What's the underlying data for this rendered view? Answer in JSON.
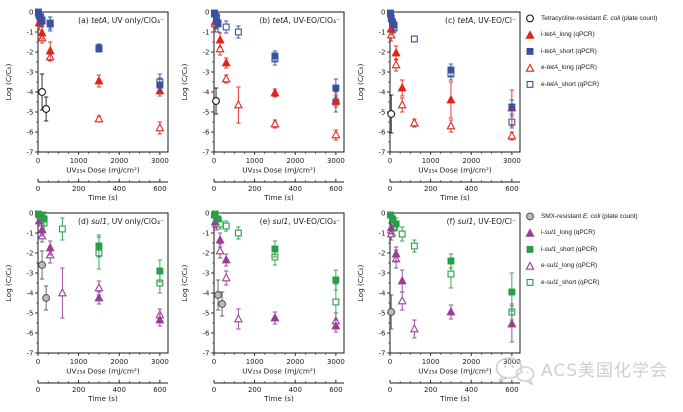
{
  "watermark": {
    "text": "ACS美国化学会",
    "icon": "wechat-bubbles",
    "color": "#cfcfcf"
  },
  "colors": {
    "red": "#e1251b",
    "blue": "#3a50a0",
    "purple": "#993d98",
    "green": "#2b9c4a",
    "black": "#1a1a1a",
    "gray_stroke": "#595959",
    "gray_fill": "#bdbdbd"
  },
  "chart_data": {
    "type": "scatter",
    "x_axis": {
      "label": "UV₂₅₄ Dose (mJ/cm²)",
      "ticks": [
        0,
        1000,
        2000,
        3000
      ],
      "range": [
        0,
        3200
      ],
      "minor_step": 250
    },
    "x2_axis": {
      "label": "Time (s)",
      "ticks": [
        0,
        200,
        400,
        600
      ],
      "range": [
        0,
        640
      ],
      "minor_step": 50
    },
    "y_axis": {
      "label": "Log (C/C₀)",
      "ticks": [
        0,
        -1,
        -2,
        -3,
        -4,
        -5,
        -6,
        -7
      ],
      "range": [
        0,
        -7
      ],
      "minor_step": 0.5
    },
    "grid": false,
    "legend_position": "right",
    "series_defs": {
      "tetA": [
        {
          "key": "plate",
          "label": "Tetracycline-resistant *E. coli* (plate count)",
          "marker": "circle",
          "stroke": "#1a1a1a",
          "fill": "#ffffff"
        },
        {
          "key": "i_long",
          "label": "i-*tetA*_long (qPCR)",
          "marker": "triangle",
          "stroke": "#e1251b",
          "fill": "#e1251b"
        },
        {
          "key": "i_short",
          "label": "i-*tetA*_short (qPCR)",
          "marker": "square",
          "stroke": "#3a50a0",
          "fill": "#3a50a0"
        },
        {
          "key": "e_long",
          "label": "e-*tetA*_long (qPCR)",
          "marker": "triangle",
          "stroke": "#e1251b",
          "fill": "#ffffff"
        },
        {
          "key": "e_short",
          "label": "e-*tetA*_short (qPCR)",
          "marker": "square",
          "stroke": "#3a50a0",
          "fill": "#ffffff"
        }
      ],
      "sul1": [
        {
          "key": "plate",
          "label": "SMX-resistant *E. coli* (plate count)",
          "marker": "circle",
          "stroke": "#595959",
          "fill": "#bdbdbd"
        },
        {
          "key": "i_long",
          "label": "i-*sul1*_long (qPCR)",
          "marker": "triangle",
          "stroke": "#993d98",
          "fill": "#993d98"
        },
        {
          "key": "i_short",
          "label": "i-*sul1*_short (qPCR)",
          "marker": "square",
          "stroke": "#2b9c4a",
          "fill": "#2b9c4a"
        },
        {
          "key": "e_long",
          "label": "e-*sul1*_long (qPCR)",
          "marker": "triangle",
          "stroke": "#993d98",
          "fill": "#ffffff"
        },
        {
          "key": "e_short",
          "label": "e-*sul1*_short (qPCR)",
          "marker": "square",
          "stroke": "#2b9c4a",
          "fill": "#ffffff"
        }
      ]
    },
    "panels": [
      {
        "id": "a",
        "row": "tetA",
        "title": "(a) *tetA*, UV only/ClO₄⁻",
        "series": {
          "plate": [
            [
              100,
              -4.0,
              0.9
            ],
            [
              200,
              -4.85,
              0.6
            ]
          ],
          "i_long": [
            [
              30,
              -0.55,
              0.35
            ],
            [
              100,
              -1.05,
              0.3
            ],
            [
              300,
              -1.95,
              0.45
            ],
            [
              1500,
              -3.45,
              0.3
            ],
            [
              3000,
              -3.95,
              0.25
            ]
          ],
          "i_short": [
            [
              10,
              -0.05,
              0.1
            ],
            [
              30,
              -0.2,
              0.25
            ],
            [
              60,
              -0.3,
              0.25
            ],
            [
              100,
              -0.45,
              0.3
            ],
            [
              300,
              -0.6,
              0.35
            ],
            [
              1500,
              -1.85,
              0.15
            ],
            [
              3000,
              -3.65,
              0.35
            ]
          ],
          "e_long": [
            [
              100,
              -1.3,
              0.25
            ],
            [
              300,
              -2.25,
              0.2
            ],
            [
              1500,
              -5.35,
              0.15
            ],
            [
              3000,
              -5.8,
              0.3
            ]
          ],
          "e_short": [
            [
              10,
              0,
              0.05
            ],
            [
              30,
              -0.15,
              0.15
            ],
            [
              60,
              -0.25,
              0.2
            ],
            [
              100,
              -0.4,
              0.25
            ],
            [
              300,
              -0.55,
              0.3
            ],
            [
              1500,
              -1.8,
              0.2
            ],
            [
              3000,
              -3.5,
              0.4
            ]
          ]
        }
      },
      {
        "id": "b",
        "row": "tetA",
        "title": "(b) *tetA*, UV-EO/ClO₄⁻",
        "series": {
          "plate": [
            [
              50,
              -4.45,
              0.65
            ]
          ],
          "i_long": [
            [
              30,
              -0.5,
              0.3
            ],
            [
              150,
              -1.4,
              0.35
            ],
            [
              300,
              -2.55,
              0.25
            ],
            [
              1500,
              -4.05,
              0.2
            ],
            [
              3000,
              -4.45,
              0.3
            ]
          ],
          "i_short": [
            [
              10,
              -0.1,
              0.15
            ],
            [
              60,
              -0.45,
              0.4
            ],
            [
              100,
              -0.55,
              0.45
            ],
            [
              1500,
              -2.2,
              0.25
            ],
            [
              3000,
              -3.8,
              0.45
            ]
          ],
          "e_long": [
            [
              30,
              -0.6,
              0.4
            ],
            [
              150,
              -1.85,
              0.3
            ],
            [
              300,
              -3.35,
              0.2
            ],
            [
              600,
              -4.65,
              0.9
            ],
            [
              1500,
              -5.6,
              0.2
            ],
            [
              3000,
              -6.15,
              0.25
            ]
          ],
          "e_short": [
            [
              10,
              -0.05,
              0.1
            ],
            [
              60,
              -0.3,
              0.3
            ],
            [
              100,
              -0.6,
              0.4
            ],
            [
              300,
              -0.75,
              0.3
            ],
            [
              600,
              -1.0,
              0.3
            ],
            [
              1500,
              -2.35,
              0.3
            ],
            [
              3000,
              -4.5,
              0.5
            ]
          ]
        }
      },
      {
        "id": "c",
        "row": "tetA",
        "title": "(c) *tetA*, UV-EO/Cl⁻",
        "series": {
          "plate": [
            [
              30,
              -5.1,
              0.95
            ]
          ],
          "i_long": [
            [
              30,
              -0.85,
              0.3
            ],
            [
              150,
              -2.05,
              0.35
            ],
            [
              300,
              -3.8,
              0.4
            ],
            [
              1500,
              -4.4,
              0.9
            ],
            [
              3000,
              -4.8,
              0.9
            ]
          ],
          "i_short": [
            [
              10,
              -0.1,
              0.1
            ],
            [
              30,
              -0.3,
              0.2
            ],
            [
              60,
              -0.5,
              0.25
            ],
            [
              100,
              -0.65,
              0.25
            ],
            [
              1500,
              -2.9,
              0.3
            ],
            [
              3000,
              -4.75,
              0.35
            ]
          ],
          "e_long": [
            [
              30,
              -1.15,
              0.3
            ],
            [
              150,
              -2.65,
              0.3
            ],
            [
              300,
              -4.65,
              0.35
            ],
            [
              600,
              -5.55,
              0.2
            ],
            [
              1500,
              -5.7,
              0.3
            ],
            [
              3000,
              -6.2,
              0.2
            ]
          ],
          "e_short": [
            [
              10,
              -0.05,
              0.05
            ],
            [
              60,
              -0.6,
              0.2
            ],
            [
              100,
              -0.8,
              0.25
            ],
            [
              600,
              -1.35,
              0.15
            ],
            [
              1500,
              -3.1,
              0.3
            ],
            [
              3000,
              -5.5,
              0.3
            ]
          ]
        }
      },
      {
        "id": "d",
        "row": "sul1",
        "title": "(d) *sul1*, UV only/ClO₄⁻",
        "series": {
          "plate": [
            [
              100,
              -2.6,
              0.7
            ],
            [
              200,
              -4.25,
              0.6
            ]
          ],
          "i_long": [
            [
              30,
              -0.4,
              0.25
            ],
            [
              100,
              -0.85,
              0.3
            ],
            [
              300,
              -1.75,
              0.35
            ],
            [
              1500,
              -4.25,
              0.3
            ],
            [
              3000,
              -5.35,
              0.3
            ]
          ],
          "i_short": [
            [
              10,
              -0.05,
              0.1
            ],
            [
              60,
              -0.15,
              0.2
            ],
            [
              150,
              -0.3,
              0.35
            ],
            [
              1500,
              -1.65,
              0.55
            ],
            [
              3000,
              -2.9,
              0.55
            ]
          ],
          "e_long": [
            [
              100,
              -1.15,
              0.3
            ],
            [
              300,
              -2.1,
              0.4
            ],
            [
              600,
              -4.0,
              1.25
            ],
            [
              1500,
              -3.75,
              0.35
            ],
            [
              3000,
              -5.1,
              0.3
            ]
          ],
          "e_short": [
            [
              30,
              -0.1,
              0.1
            ],
            [
              150,
              -0.5,
              0.4
            ],
            [
              600,
              -0.8,
              0.55
            ],
            [
              1500,
              -2.0,
              0.8
            ],
            [
              3000,
              -3.5,
              0.5
            ]
          ]
        }
      },
      {
        "id": "e",
        "row": "sul1",
        "title": "(e) *sul1*, UV-EO/ClO₄⁻",
        "series": {
          "plate": [
            [
              100,
              -4.1,
              0.75
            ],
            [
              200,
              -4.55,
              0.6
            ]
          ],
          "i_long": [
            [
              30,
              -0.45,
              0.3
            ],
            [
              150,
              -1.35,
              0.35
            ],
            [
              300,
              -2.35,
              0.3
            ],
            [
              1500,
              -5.25,
              0.3
            ],
            [
              3000,
              -5.65,
              0.3
            ]
          ],
          "i_short": [
            [
              10,
              -0.1,
              0.1
            ],
            [
              100,
              -0.3,
              0.3
            ],
            [
              1500,
              -1.8,
              0.4
            ],
            [
              3000,
              -3.35,
              0.5
            ]
          ],
          "e_long": [
            [
              60,
              -0.55,
              0.3
            ],
            [
              150,
              -1.9,
              0.35
            ],
            [
              300,
              -3.25,
              0.35
            ],
            [
              600,
              -5.3,
              0.5
            ],
            [
              3000,
              -5.4,
              0.4
            ]
          ],
          "e_short": [
            [
              30,
              -0.05,
              0.05
            ],
            [
              150,
              -0.55,
              0.25
            ],
            [
              300,
              -0.65,
              0.25
            ],
            [
              600,
              -1.0,
              0.3
            ],
            [
              1500,
              -2.2,
              0.4
            ],
            [
              3000,
              -4.45,
              0.9
            ]
          ]
        }
      },
      {
        "id": "f",
        "row": "sul1",
        "title": "(f) *sul1*, UV-EO/Cl⁻",
        "series": {
          "plate": [
            [
              30,
              -4.95,
              0.85
            ]
          ],
          "i_long": [
            [
              30,
              -0.75,
              0.3
            ],
            [
              150,
              -2.05,
              0.35
            ],
            [
              300,
              -3.4,
              0.55
            ],
            [
              1500,
              -4.95,
              0.35
            ],
            [
              3000,
              -5.55,
              0.9
            ]
          ],
          "i_short": [
            [
              10,
              -0.1,
              0.1
            ],
            [
              60,
              -0.3,
              0.2
            ],
            [
              150,
              -0.55,
              0.3
            ],
            [
              1500,
              -2.4,
              0.35
            ],
            [
              3000,
              -3.95,
              0.95
            ]
          ],
          "e_long": [
            [
              30,
              -1.05,
              0.3
            ],
            [
              150,
              -2.3,
              0.45
            ],
            [
              300,
              -4.4,
              0.45
            ],
            [
              600,
              -5.8,
              0.45
            ]
          ],
          "e_short": [
            [
              100,
              -0.75,
              0.35
            ],
            [
              300,
              -1.05,
              0.35
            ],
            [
              600,
              -1.65,
              0.3
            ],
            [
              1500,
              -3.05,
              0.7
            ],
            [
              3000,
              -4.95,
              0.4
            ]
          ]
        }
      }
    ],
    "legends": [
      {
        "name": "tetA-legend",
        "row": "tetA"
      },
      {
        "name": "sul1-legend",
        "row": "sul1"
      }
    ]
  }
}
